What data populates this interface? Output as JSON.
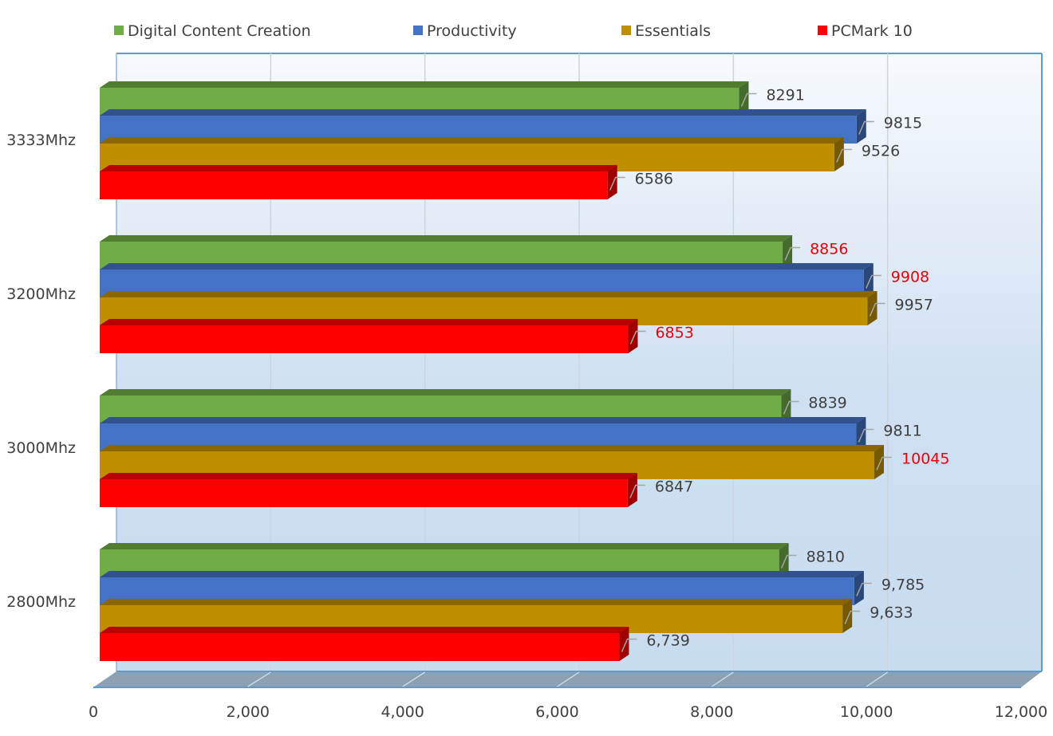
{
  "chart_data": {
    "type": "bar",
    "orientation": "horizontal",
    "style": "3d-clustered",
    "title": "",
    "xlabel": "",
    "ylabel": "",
    "xlim": [
      0,
      12000
    ],
    "x_ticks": [
      0,
      2000,
      4000,
      6000,
      8000,
      10000,
      12000
    ],
    "x_tick_labels": [
      "0",
      "2,000",
      "4,000",
      "6,000",
      "8,000",
      "10,000",
      "12,000"
    ],
    "grid": true,
    "legend_position": "top",
    "categories": [
      "3333Mhz",
      "3200Mhz",
      "3000Mhz",
      "2800Mhz"
    ],
    "series": [
      {
        "name": "Digital Content Creation",
        "color": "#70AD47",
        "values": [
          8291,
          8856,
          8839,
          8810
        ],
        "labels": [
          "8291",
          "8856",
          "8839",
          "8810"
        ],
        "label_colors": [
          "#404040",
          "#E8000B",
          "#404040",
          "#404040"
        ]
      },
      {
        "name": "Productivity",
        "color": "#4472C4",
        "values": [
          9815,
          9908,
          9811,
          9785
        ],
        "labels": [
          "9815",
          "9908",
          "9811",
          "9,785"
        ],
        "label_colors": [
          "#404040",
          "#E8000B",
          "#404040",
          "#404040"
        ]
      },
      {
        "name": "Essentials",
        "color": "#BF8F00",
        "values": [
          9526,
          9957,
          10045,
          9633
        ],
        "labels": [
          "9526",
          "9957",
          "10045",
          "9,633"
        ],
        "label_colors": [
          "#404040",
          "#404040",
          "#E8000B",
          "#404040"
        ]
      },
      {
        "name": "PCMark 10",
        "color": "#FF0000",
        "values": [
          6586,
          6853,
          6847,
          6739
        ],
        "labels": [
          "6586",
          "6853",
          "6847",
          "6,739"
        ],
        "label_colors": [
          "#404040",
          "#E8000B",
          "#404040",
          "#404040"
        ]
      }
    ]
  }
}
